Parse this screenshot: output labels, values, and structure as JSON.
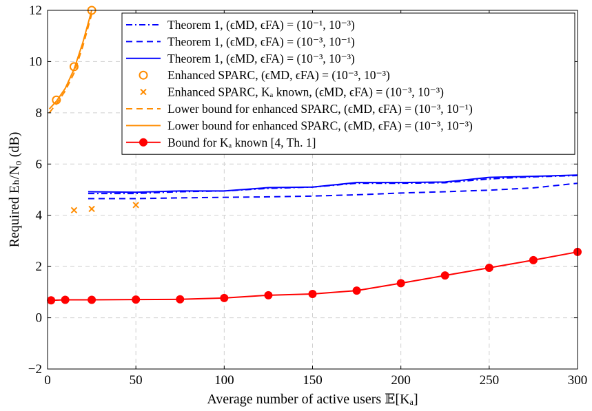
{
  "chart_data": {
    "type": "line",
    "xlabel": "Average number of active users 𝔼[Kₐ]",
    "ylabel": "Required Eₕ/N₀ (dB)",
    "xlim": [
      0,
      300
    ],
    "ylim": [
      -2,
      12
    ],
    "xticks": [
      0,
      50,
      100,
      150,
      200,
      250,
      300
    ],
    "yticks": [
      -2,
      0,
      2,
      4,
      6,
      8,
      10,
      12
    ],
    "xtick_labels": [
      "0",
      "50",
      "100",
      "150",
      "200",
      "250",
      "300"
    ],
    "ytick_labels": [
      "−2",
      "0",
      "2",
      "4",
      "6",
      "8",
      "10",
      "12"
    ],
    "grid": true,
    "legend_position": "top-right",
    "series": [
      {
        "name": "Theorem 1, (ϵMD, ϵFA) = (10⁻¹, 10⁻³)",
        "color": "#0000ff",
        "style": "dashdot",
        "marker": "none",
        "x": [
          23,
          50,
          75,
          100,
          125,
          150,
          175,
          200,
          225,
          250,
          275,
          300
        ],
        "y": [
          4.85,
          4.85,
          4.92,
          4.95,
          5.05,
          5.1,
          5.25,
          5.25,
          5.27,
          5.42,
          5.5,
          5.55
        ]
      },
      {
        "name": "Theorem 1, (ϵMD, ϵFA) = (10⁻³, 10⁻¹)",
        "color": "#0000ff",
        "style": "dashed",
        "marker": "none",
        "x": [
          23,
          50,
          75,
          100,
          125,
          150,
          175,
          200,
          225,
          250,
          275,
          300
        ],
        "y": [
          4.65,
          4.65,
          4.68,
          4.7,
          4.72,
          4.75,
          4.8,
          4.87,
          4.92,
          4.98,
          5.07,
          5.25
        ]
      },
      {
        "name": "Theorem 1, (ϵMD, ϵFA) = (10⁻³, 10⁻³)",
        "color": "#0000ff",
        "style": "solid",
        "marker": "none",
        "x": [
          23,
          50,
          75,
          100,
          125,
          150,
          175,
          200,
          225,
          250,
          275,
          300
        ],
        "y": [
          4.92,
          4.9,
          4.95,
          4.95,
          5.08,
          5.1,
          5.28,
          5.28,
          5.3,
          5.48,
          5.52,
          5.57
        ]
      },
      {
        "name": "Enhanced SPARC, (ϵMD, ϵFA) = (10⁻³, 10⁻³)",
        "color": "#ff8c00",
        "style": "none",
        "marker": "circle",
        "x": [
          5,
          15,
          25
        ],
        "y": [
          8.5,
          9.8,
          12.0
        ]
      },
      {
        "name": "Enhanced SPARC, Kₐ known, (ϵMD, ϵFA) = (10⁻³, 10⁻³)",
        "color": "#ff8c00",
        "style": "none",
        "marker": "cross",
        "x": [
          15,
          25,
          50
        ],
        "y": [
          4.2,
          4.25,
          4.4
        ]
      },
      {
        "name": "Lower bound for enhanced SPARC, (ϵMD, ϵFA) = (10⁻³, 10⁻¹)",
        "color": "#ff8c00",
        "style": "dashed",
        "marker": "none",
        "x": [
          1,
          5,
          10,
          15,
          20,
          25
        ],
        "y": [
          8.0,
          8.35,
          8.85,
          9.55,
          10.6,
          11.85
        ]
      },
      {
        "name": "Lower bound for enhanced SPARC, (ϵMD, ϵFA) = (10⁻³, 10⁻³)",
        "color": "#ff8c00",
        "style": "solid",
        "marker": "none",
        "x": [
          1,
          5,
          10,
          15,
          20,
          25
        ],
        "y": [
          8.15,
          8.45,
          8.95,
          9.7,
          10.75,
          12.0
        ]
      },
      {
        "name": "Bound for Kₐ known [4, Th. 1]",
        "color": "#ff0000",
        "style": "solid",
        "marker": "dot",
        "x": [
          2,
          10,
          25,
          50,
          75,
          100,
          125,
          150,
          175,
          200,
          225,
          250,
          275,
          300
        ],
        "y": [
          0.68,
          0.7,
          0.7,
          0.71,
          0.72,
          0.77,
          0.88,
          0.93,
          1.06,
          1.35,
          1.65,
          1.95,
          2.25,
          2.57
        ]
      }
    ]
  }
}
